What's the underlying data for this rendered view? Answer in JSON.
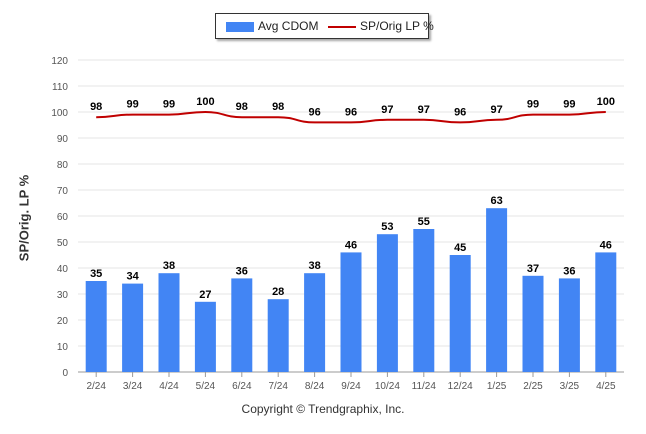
{
  "chart_data": {
    "type": "bar",
    "categories": [
      "2/24",
      "3/24",
      "4/24",
      "5/24",
      "6/24",
      "7/24",
      "8/24",
      "9/24",
      "10/24",
      "11/24",
      "12/24",
      "1/25",
      "2/25",
      "3/25",
      "4/25"
    ],
    "series": [
      {
        "name": "Avg CDOM",
        "type": "bar",
        "color": "#4285f4",
        "values": [
          35,
          34,
          38,
          27,
          36,
          28,
          38,
          46,
          53,
          55,
          45,
          63,
          37,
          36,
          46
        ]
      },
      {
        "name": "SP/Orig LP %",
        "type": "line",
        "color": "#c00000",
        "values": [
          98,
          99,
          99,
          100,
          98,
          98,
          96,
          96,
          97,
          97,
          96,
          97,
          99,
          99,
          100
        ]
      }
    ],
    "ylabel": "SP/Orig. LP %",
    "xlabel": "",
    "ylim": [
      0,
      120
    ],
    "yticks": [
      0,
      10,
      20,
      30,
      40,
      50,
      60,
      70,
      80,
      90,
      100,
      110,
      120
    ],
    "grid": true,
    "legend_position": "top-center"
  },
  "copyright": "Copyright © Trendgraphix, Inc."
}
